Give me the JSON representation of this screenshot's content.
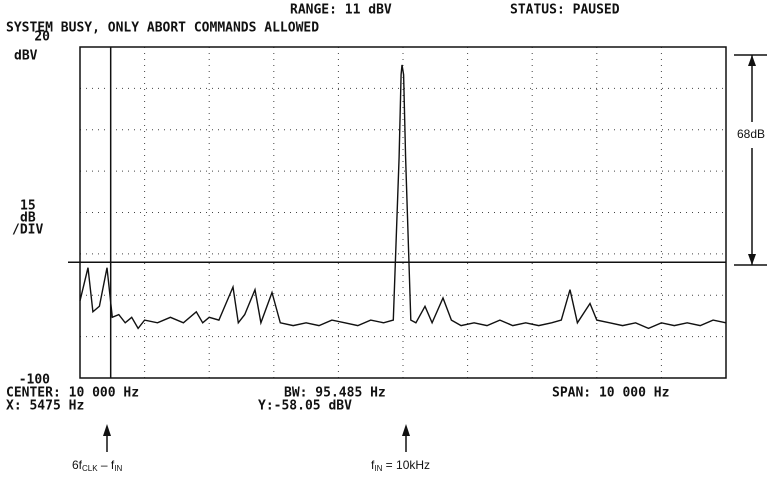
{
  "screen": {
    "range": "RANGE: 11 dBV",
    "status": "STATUS: PAUSED",
    "message": "SYSTEM BUSY, ONLY ABORT COMMANDS ALLOWED",
    "ref_unit": "dBV",
    "scale": [
      "15",
      "dB",
      "/DIV"
    ],
    "center": "CENTER: 10 000 Hz",
    "bw": "BW: 95.485 Hz",
    "span": "SPAN: 10 000 Hz",
    "x_readout": "X: 5475 Hz",
    "y_readout": "Y:-58.05 dBV"
  },
  "annotations": {
    "range_label": "68dB",
    "left": {
      "a": "6f",
      "a_sub": "CLK",
      "b": " – f",
      "b_sub": "IN"
    },
    "right": {
      "a": "f",
      "a_sub": "IN",
      "b": " = 10kHz"
    }
  },
  "chart_data": {
    "type": "line",
    "color": "#111111",
    "grid": true,
    "xlim": [
      5000,
      15000
    ],
    "xticks": [
      5000,
      6000,
      7000,
      8000,
      9000,
      10000,
      11000,
      12000,
      13000,
      14000,
      15000
    ],
    "ylim": [
      -100,
      20
    ],
    "yticks": [
      -100,
      -85,
      -70,
      -55,
      -40,
      -25,
      -10,
      5,
      20
    ],
    "marker_x": 5475,
    "marker_y": -58.05,
    "x": [
      5000,
      5124,
      5200,
      5300,
      5418,
      5500,
      5600,
      5700,
      5800,
      5900,
      6000,
      6200,
      6400,
      6600,
      6800,
      6900,
      7000,
      7150,
      7368,
      7450,
      7550,
      7709,
      7800,
      7972,
      8100,
      8300,
      8500,
      8700,
      8900,
      9100,
      9300,
      9500,
      9700,
      9850,
      9940,
      9970,
      9985,
      10010,
      10040,
      10120,
      10200,
      10341,
      10450,
      10619,
      10750,
      10900,
      11100,
      11300,
      11500,
      11700,
      11900,
      12100,
      12300,
      12450,
      12585,
      12700,
      12895,
      13000,
      13200,
      13400,
      13600,
      13800,
      14000,
      14200,
      14400,
      14600,
      14800,
      15000
    ],
    "values": [
      -72,
      -60,
      -76,
      -74,
      -60,
      -78,
      -77,
      -80,
      -78,
      -82,
      -79,
      -80,
      -78,
      -80,
      -76,
      -80,
      -78,
      -79,
      -67,
      -80,
      -77,
      -68,
      -80,
      -69,
      -80,
      -81,
      -80,
      -81,
      -79,
      -80,
      -81,
      -79,
      -80,
      -79,
      -20,
      10,
      13.5,
      10,
      -20,
      -79,
      -80,
      -74,
      -80,
      -71,
      -79,
      -81,
      -80,
      -81,
      -79,
      -81,
      -80,
      -81,
      -80,
      -79,
      -68,
      -80,
      -73,
      -79,
      -80,
      -81,
      -80,
      -82,
      -80,
      -81,
      -80,
      -81,
      -79,
      -80
    ]
  }
}
